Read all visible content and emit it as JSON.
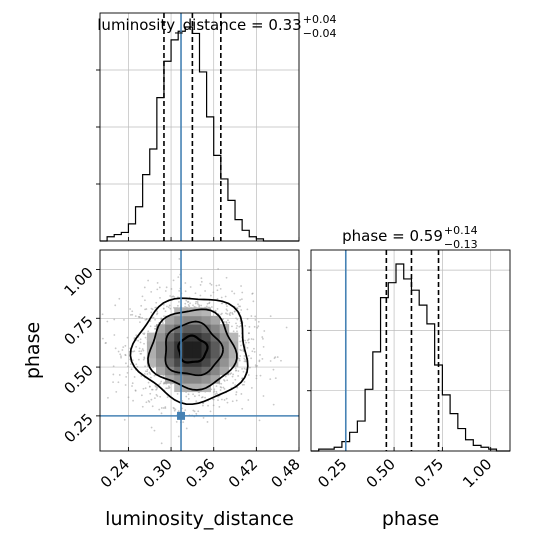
{
  "chart_data": [
    {
      "type": "histogram",
      "panel": "luminosity_distance marginal",
      "title": {
        "param": "luminosity_distance",
        "value": "0.33",
        "plus": "+0.04",
        "minus": "−0.04"
      },
      "x_range": [
        0.2,
        0.48
      ],
      "bin_edges": [
        0.2,
        0.21,
        0.22,
        0.23,
        0.24,
        0.25,
        0.26,
        0.27,
        0.28,
        0.29,
        0.3,
        0.31,
        0.32,
        0.33,
        0.34,
        0.35,
        0.36,
        0.37,
        0.38,
        0.39,
        0.4,
        0.41,
        0.42,
        0.43,
        0.44,
        0.45,
        0.46,
        0.47,
        0.48
      ],
      "counts": [
        0,
        0.02,
        0.03,
        0.04,
        0.08,
        0.16,
        0.31,
        0.43,
        0.67,
        0.84,
        0.94,
        0.98,
        1.0,
        0.97,
        0.79,
        0.58,
        0.4,
        0.29,
        0.19,
        0.1,
        0.05,
        0.02,
        0.01,
        0,
        0,
        0,
        0,
        0
      ],
      "quantiles": [
        0.29,
        0.33,
        0.37
      ],
      "truth": 0.314,
      "grid": true
    },
    {
      "type": "histogram",
      "panel": "phase marginal",
      "title": {
        "param": "phase",
        "value": "0.59",
        "plus": "+0.14",
        "minus": "−0.13"
      },
      "x_range": [
        0.07,
        1.1
      ],
      "bin_edges": [
        0.07,
        0.11,
        0.15,
        0.19,
        0.23,
        0.27,
        0.31,
        0.35,
        0.39,
        0.43,
        0.47,
        0.51,
        0.55,
        0.59,
        0.63,
        0.67,
        0.71,
        0.75,
        0.79,
        0.83,
        0.87,
        0.91,
        0.95,
        0.99,
        1.03,
        1.07,
        1.1
      ],
      "counts": [
        0,
        0.01,
        0.01,
        0.02,
        0.05,
        0.1,
        0.16,
        0.33,
        0.53,
        0.82,
        0.9,
        1.0,
        0.92,
        0.86,
        0.78,
        0.68,
        0.46,
        0.3,
        0.2,
        0.12,
        0.06,
        0.03,
        0.02,
        0.01,
        0,
        0
      ],
      "quantiles": [
        0.46,
        0.59,
        0.73
      ],
      "truth": 0.25,
      "grid": true
    },
    {
      "type": "scatter",
      "panel": "luminosity_distance vs phase (2D density)",
      "x_range": [
        0.2,
        0.48
      ],
      "y_range": [
        0.07,
        1.1
      ],
      "x_ticks": [
        "0.24",
        "0.30",
        "0.36",
        "0.42",
        "0.48"
      ],
      "x_tick_values": [
        0.24,
        0.3,
        0.36,
        0.42,
        0.48
      ],
      "y_ticks": [
        "0.25",
        "0.50",
        "0.75",
        "1.00"
      ],
      "y_tick_values": [
        0.25,
        0.5,
        0.75,
        1.0
      ],
      "xlabel": "luminosity_distance",
      "ylabel": "phase",
      "center": [
        0.33,
        0.59
      ],
      "sigma": [
        0.04,
        0.135
      ],
      "truth": [
        0.314,
        0.25
      ],
      "contour_levels_sigma": [
        0.5,
        1.0,
        1.5,
        2.0
      ],
      "grid": true
    },
    {
      "type": "axis",
      "panel": "phase marginal x-axis",
      "x_ticks": [
        "0.25",
        "0.50",
        "0.75",
        "1.00"
      ],
      "x_tick_values": [
        0.25,
        0.5,
        0.75,
        1.0
      ],
      "xlabel": "phase"
    }
  ],
  "colors": {
    "truth": "#4682b4",
    "hist": "#000000",
    "quantile": "#000000",
    "scatter": "#9a9a9a",
    "grid": "#bdbdbd"
  }
}
